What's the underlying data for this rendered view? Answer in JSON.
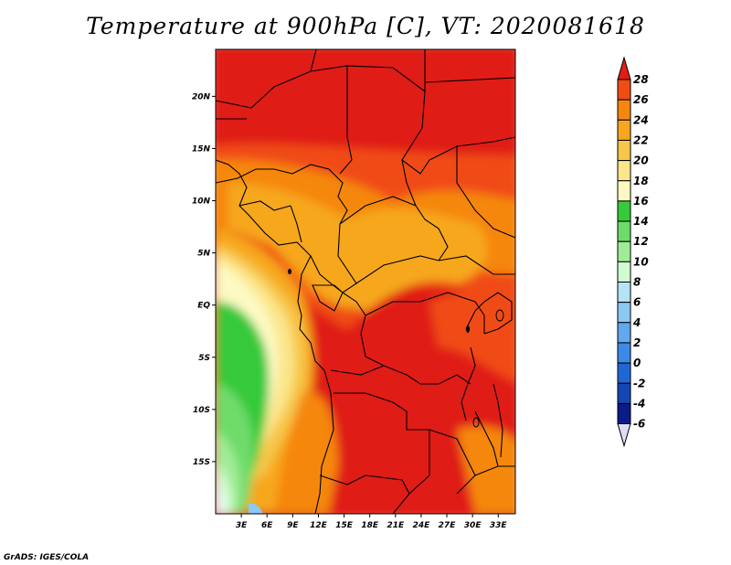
{
  "chart_data": {
    "type": "heatmap",
    "title": "Temperature at 900hPa [C], VT: 2020081618",
    "credit": "GrADS: IGES/COLA",
    "lat_ticks": [
      "20N",
      "15N",
      "10N",
      "5N",
      "EQ",
      "5S",
      "10S",
      "15S"
    ],
    "lon_ticks": [
      "3E",
      "6E",
      "9E",
      "12E",
      "15E",
      "18E",
      "21E",
      "24E",
      "27E",
      "30E",
      "33E"
    ],
    "colorbar": {
      "labels": [
        "28",
        "26",
        "24",
        "22",
        "20",
        "18",
        "16",
        "14",
        "12",
        "10",
        "8",
        "6",
        "4",
        "2",
        "0",
        "-2",
        "-4",
        "-6"
      ],
      "colors": [
        "#e01e14",
        "#f04c14",
        "#f5870e",
        "#f6a71e",
        "#f7c64a",
        "#fce68c",
        "#fdf9c2",
        "#36c93a",
        "#6edb6a",
        "#a0ec96",
        "#d2fad0",
        "#b6e2f8",
        "#8cc8f4",
        "#61a8ee",
        "#3c8ae6",
        "#2067d6",
        "#1446b4",
        "#0c1c86",
        "#e0dcf4"
      ]
    },
    "ranges": {
      "lon": [
        0,
        35
      ],
      "lat": [
        -20,
        24.5
      ]
    }
  }
}
